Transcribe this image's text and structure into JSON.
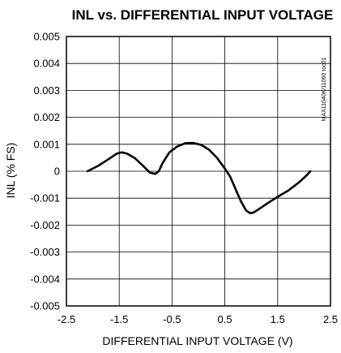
{
  "chart_data": {
    "type": "line",
    "title": "INL vs. DIFFERENTIAL INPUT VOLTAGE",
    "xlabel": "DIFFERENTIAL INPUT VOLTAGE (V)",
    "ylabel": "INL (% FS)",
    "figure_id": "MAX11040K/11060 toc01",
    "xlim": [
      -2.5,
      2.5
    ],
    "ylim": [
      -0.005,
      0.005
    ],
    "grid": true,
    "x_ticks": [
      "-2.5",
      "-1.5",
      "-0.5",
      "0.5",
      "1.5",
      "2.5"
    ],
    "y_ticks": [
      "0.005",
      "0.004",
      "0.003",
      "0.002",
      "0.001",
      "0",
      "-0.001",
      "-0.002",
      "-0.003",
      "-0.004",
      "-0.005"
    ],
    "series": [
      {
        "x": [
          -2.1,
          -1.9,
          -1.7,
          -1.55,
          -1.45,
          -1.35,
          -1.2,
          -1.05,
          -0.92,
          -0.82,
          -0.75,
          -0.68,
          -0.55,
          -0.4,
          -0.25,
          -0.1,
          0.05,
          0.2,
          0.35,
          0.5,
          0.6,
          0.7,
          0.8,
          0.9,
          0.97,
          1.02,
          1.07,
          1.15,
          1.3,
          1.5,
          1.7,
          1.9,
          2.05,
          2.12
        ],
        "y": [
          0.0,
          0.0002,
          0.00045,
          0.00065,
          0.0007,
          0.00065,
          0.00048,
          0.0002,
          -5e-05,
          -0.0001,
          0.0,
          0.0003,
          0.0007,
          0.00092,
          0.00104,
          0.00105,
          0.00098,
          0.0008,
          0.0005,
          0.0001,
          -0.0002,
          -0.00065,
          -0.0011,
          -0.00145,
          -0.00155,
          -0.00155,
          -0.0015,
          -0.0014,
          -0.0012,
          -0.00095,
          -0.00072,
          -0.00042,
          -0.00015,
          0.0
        ]
      }
    ]
  }
}
